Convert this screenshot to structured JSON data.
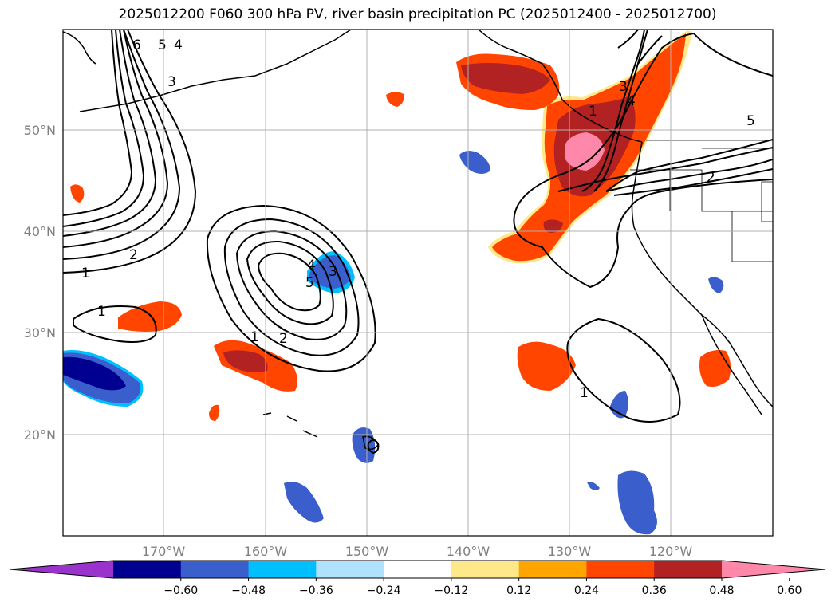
{
  "title": "2025012200 F060 300 hPa PV, river basin precipitation PC (2025012400 - 2025012700)",
  "lat_labels": [
    "50°N",
    "40°N",
    "30°N",
    "20°N"
  ],
  "lon_labels": [
    "170°W",
    "160°W",
    "150°W",
    "140°W",
    "130°W",
    "120°W"
  ],
  "colorbar": {
    "ticks": [
      "−0.60",
      "−0.48",
      "−0.36",
      "−0.24",
      "−0.12",
      "0.12",
      "0.24",
      "0.36",
      "0.48",
      "0.60"
    ],
    "colors": [
      "#9933cc",
      "#000090",
      "#3a5fcd",
      "#00bfff",
      "#b0e2ff",
      "#ffffff",
      "#ffe88a",
      "#ffa500",
      "#ff4500",
      "#b22222",
      "#ff88aa"
    ]
  },
  "contour_labels": [
    "6",
    "5",
    "4",
    "3",
    "2",
    "1",
    "1",
    "4",
    "3",
    "5",
    "1",
    "2",
    "1",
    "3",
    "4",
    "5",
    "2",
    "1"
  ]
}
